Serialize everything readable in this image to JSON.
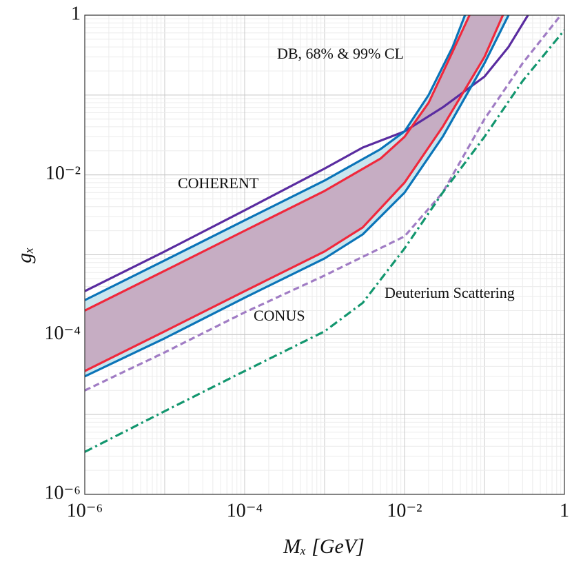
{
  "chart_data": {
    "type": "line",
    "xlog": true,
    "ylog": true,
    "grid": true,
    "minor_grid": true,
    "xlabel": "Mₓ [GeV]",
    "ylabel": "gₓ",
    "xlim": [
      1e-06,
      1
    ],
    "ylim": [
      1e-06,
      1
    ],
    "xticks": [
      {
        "value": 1e-06,
        "label": "10⁻⁶"
      },
      {
        "value": 0.0001,
        "label": "10⁻⁴"
      },
      {
        "value": 0.01,
        "label": "10⁻²"
      },
      1
    ],
    "yticks": [
      {
        "value": 1e-06,
        "label": "10⁻⁶"
      },
      {
        "value": 0.0001,
        "label": "10⁻⁴"
      },
      {
        "value": 0.01,
        "label": "10⁻²"
      },
      1
    ],
    "annotations": [
      "DB, 68% & 99% CL",
      "COHERENT",
      "CONUS",
      "Deuterium Scattering"
    ],
    "fill_between": [
      {
        "series": [
          1,
          4
        ],
        "color": "#c9e6ef"
      },
      {
        "series": [
          2,
          3
        ],
        "color": "#c6a2bb"
      }
    ],
    "series": [
      {
        "color": "#5a2ca0",
        "dash": "solid",
        "x": [
          1e-06,
          1e-05,
          0.0001,
          0.001,
          0.003,
          0.01,
          0.03,
          0.1,
          0.2,
          0.35
        ],
        "values": [
          0.00035,
          0.0011,
          0.0036,
          0.012,
          0.022,
          0.035,
          0.07,
          0.17,
          0.4,
          1
        ]
      },
      {
        "color": "#0a74b8",
        "dash": "solid",
        "x": [
          1e-06,
          1e-05,
          0.0001,
          0.001,
          0.005,
          0.01,
          0.02,
          0.04,
          0.057
        ],
        "values": [
          0.00027,
          0.00085,
          0.0027,
          0.0085,
          0.021,
          0.035,
          0.1,
          0.4,
          1
        ]
      },
      {
        "color": "#f0283c",
        "dash": "solid",
        "x": [
          1e-06,
          1e-05,
          0.0001,
          0.001,
          0.005,
          0.01,
          0.02,
          0.04,
          0.065
        ],
        "values": [
          0.0002,
          0.00063,
          0.002,
          0.0063,
          0.016,
          0.03,
          0.08,
          0.35,
          1
        ]
      },
      {
        "color": "#f0283c",
        "dash": "solid",
        "x": [
          1e-06,
          1e-05,
          0.0001,
          0.001,
          0.003,
          0.01,
          0.03,
          0.1,
          0.17
        ],
        "values": [
          3.5e-05,
          0.00011,
          0.00035,
          0.0011,
          0.0022,
          0.008,
          0.04,
          0.3,
          1
        ]
      },
      {
        "color": "#0a74b8",
        "dash": "solid",
        "x": [
          1e-06,
          1e-05,
          0.0001,
          0.001,
          0.003,
          0.01,
          0.03,
          0.1,
          0.2
        ],
        "values": [
          3e-05,
          9e-05,
          0.00029,
          0.0009,
          0.0018,
          0.006,
          0.03,
          0.25,
          1
        ]
      },
      {
        "color": "#a07cc4",
        "dash": "dashed",
        "x": [
          1e-06,
          1e-05,
          0.0001,
          0.001,
          0.01,
          0.03,
          0.1,
          0.3,
          0.9
        ],
        "values": [
          2e-05,
          6e-05,
          0.00019,
          0.00055,
          0.0017,
          0.006,
          0.05,
          0.25,
          1
        ]
      },
      {
        "color": "#12966e",
        "dash": "dashdot",
        "x": [
          1e-06,
          1e-05,
          0.0001,
          0.001,
          0.003,
          0.01,
          0.03,
          0.1,
          0.3,
          1
        ],
        "values": [
          3.4e-06,
          1.1e-05,
          3.5e-05,
          0.00011,
          0.00025,
          0.0012,
          0.006,
          0.03,
          0.15,
          0.65
        ]
      }
    ]
  }
}
